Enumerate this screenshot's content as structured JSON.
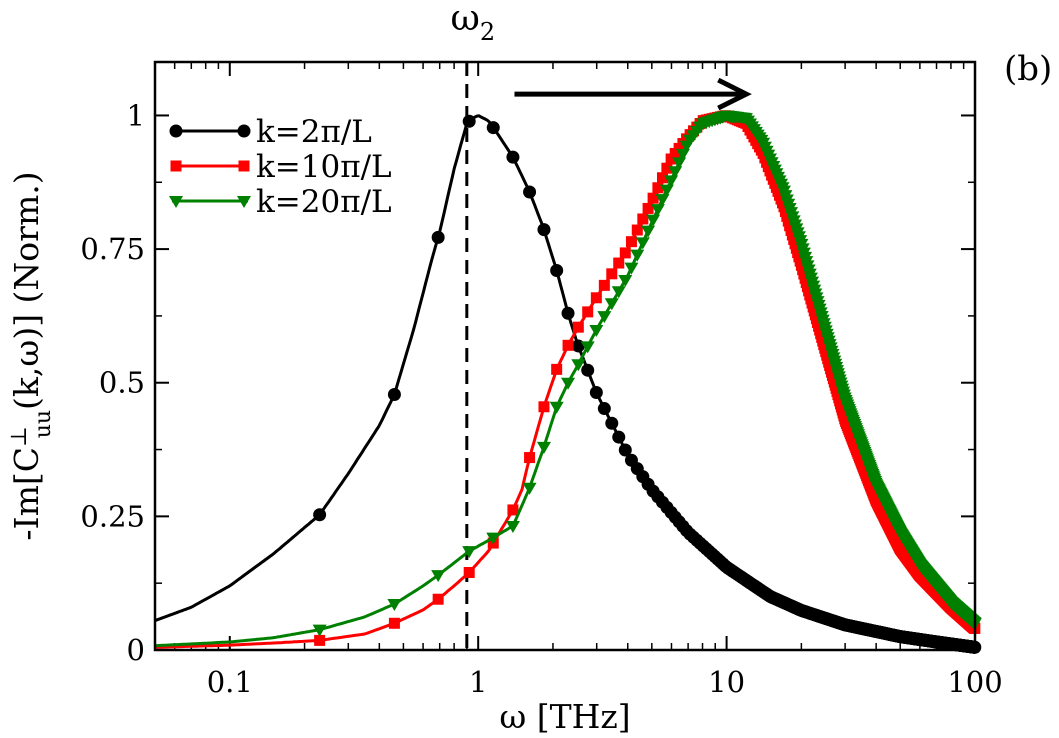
{
  "chart_data": {
    "type": "line",
    "xscale": "log",
    "xlim": [
      0.05,
      100
    ],
    "ylim": [
      0,
      1.1
    ],
    "xticks": [
      {
        "value": 0.1,
        "label": "0.1"
      },
      {
        "value": 1,
        "label": "1"
      },
      {
        "value": 10,
        "label": "10"
      },
      {
        "value": 100,
        "label": "100"
      }
    ],
    "yticks": [
      {
        "value": 0,
        "label": "0"
      },
      {
        "value": 0.25,
        "label": "0.25"
      },
      {
        "value": 0.5,
        "label": "0.5"
      },
      {
        "value": 0.75,
        "label": "0.75"
      },
      {
        "value": 1,
        "label": "1"
      }
    ],
    "xlabel": "ω [THz]",
    "ylabel": {
      "prefix": "-Im[C",
      "sup": "⊥",
      "sub": "uu",
      "suffix": "(k,ω)] (Norm.)"
    },
    "panel_label": "(b)",
    "vline": {
      "x": 0.9,
      "label": "ω",
      "label_sub": "2",
      "style": "dashed"
    },
    "arrow": {
      "from_x": 1.4,
      "to_x": 12,
      "y": 1.04,
      "direction": "right"
    },
    "series": [
      {
        "name": "k=2π/L",
        "color": "#000000",
        "marker": "circle",
        "points": [
          [
            0.05,
            0.055
          ],
          [
            0.07,
            0.08
          ],
          [
            0.1,
            0.12
          ],
          [
            0.15,
            0.18
          ],
          [
            0.23,
            0.253
          ],
          [
            0.3,
            0.33
          ],
          [
            0.4,
            0.42
          ],
          [
            0.46,
            0.478
          ],
          [
            0.55,
            0.6
          ],
          [
            0.65,
            0.73
          ],
          [
            0.7,
            0.782
          ],
          [
            0.8,
            0.9
          ],
          [
            0.9,
            0.985
          ],
          [
            0.95,
            0.995
          ],
          [
            1.0,
            1.0
          ],
          [
            1.1,
            0.99
          ],
          [
            1.2,
            0.965
          ],
          [
            1.38,
            0.922
          ],
          [
            1.6,
            0.86
          ],
          [
            1.83,
            0.79
          ],
          [
            2.07,
            0.71
          ],
          [
            2.3,
            0.63
          ],
          [
            2.5,
            0.575
          ],
          [
            3,
            0.48
          ],
          [
            4,
            0.365
          ],
          [
            5,
            0.3
          ],
          [
            7,
            0.22
          ],
          [
            10,
            0.155
          ],
          [
            15,
            0.1
          ],
          [
            20,
            0.074
          ],
          [
            30,
            0.047
          ],
          [
            50,
            0.025
          ],
          [
            70,
            0.015
          ],
          [
            100,
            0.005
          ]
        ],
        "markers_x": [
          0.23,
          0.46,
          0.69,
          0.92,
          1.15,
          1.38,
          1.61,
          1.84,
          2.07,
          2.3,
          2.53,
          2.76,
          2.99,
          3.22,
          3.45,
          3.68,
          3.91,
          4.14,
          4.37,
          4.6,
          4.83,
          5.06,
          5.29,
          5.52,
          5.75,
          5.98,
          6.21,
          6.44,
          6.67,
          6.9,
          7.13,
          7.36,
          7.59,
          7.82,
          8.05,
          8.28,
          8.51,
          8.74,
          8.97,
          9.2,
          9.43,
          9.66,
          9.89,
          10.12,
          10.35,
          10.58,
          10.81,
          11.04,
          11.27,
          11.5,
          11.73,
          11.96,
          12.19,
          12.42,
          12.65,
          12.88,
          13.11,
          13.34,
          13.57,
          13.8,
          14.03,
          14.26,
          14.49,
          14.72,
          14.95,
          15.18,
          15.41,
          15.64,
          15.87,
          16.1,
          16.33,
          16.56,
          16.79,
          17.02,
          17.25,
          17.48,
          17.71,
          17.94,
          18.17,
          18.4,
          18.63,
          18.86,
          19.09,
          19.32,
          19.55,
          19.78,
          20.01,
          20.24,
          20.47,
          20.7,
          20.93,
          21.16,
          21.39,
          21.62,
          21.85,
          22.08,
          22.31,
          22.54,
          22.77,
          23
        ]
      },
      {
        "name": "k=10π/L",
        "color": "#ff0000",
        "marker": "square",
        "points": [
          [
            0.05,
            0.005
          ],
          [
            0.1,
            0.009
          ],
          [
            0.15,
            0.013
          ],
          [
            0.23,
            0.018
          ],
          [
            0.35,
            0.03
          ],
          [
            0.46,
            0.05
          ],
          [
            0.6,
            0.075
          ],
          [
            0.69,
            0.095
          ],
          [
            0.8,
            0.12
          ],
          [
            0.92,
            0.145
          ],
          [
            1.1,
            0.185
          ],
          [
            1.15,
            0.2
          ],
          [
            1.38,
            0.262
          ],
          [
            1.5,
            0.3
          ],
          [
            1.61,
            0.36
          ],
          [
            1.84,
            0.455
          ],
          [
            2.07,
            0.525
          ],
          [
            2.3,
            0.57
          ],
          [
            2.5,
            0.6
          ],
          [
            3,
            0.66
          ],
          [
            4,
            0.75
          ],
          [
            5,
            0.84
          ],
          [
            6,
            0.92
          ],
          [
            7,
            0.96
          ],
          [
            8,
            0.99
          ],
          [
            10,
            1.0
          ],
          [
            12,
            0.985
          ],
          [
            14,
            0.93
          ],
          [
            17,
            0.83
          ],
          [
            20,
            0.72
          ],
          [
            25,
            0.56
          ],
          [
            30,
            0.43
          ],
          [
            40,
            0.28
          ],
          [
            50,
            0.19
          ],
          [
            60,
            0.14
          ],
          [
            80,
            0.08
          ],
          [
            100,
            0.04
          ]
        ]
      },
      {
        "name": "k=20π/L",
        "color": "#008000",
        "marker": "triangle-down",
        "points": [
          [
            0.05,
            0.008
          ],
          [
            0.1,
            0.015
          ],
          [
            0.15,
            0.023
          ],
          [
            0.23,
            0.038
          ],
          [
            0.35,
            0.062
          ],
          [
            0.46,
            0.086
          ],
          [
            0.6,
            0.12
          ],
          [
            0.69,
            0.14
          ],
          [
            0.8,
            0.163
          ],
          [
            0.92,
            0.185
          ],
          [
            1.1,
            0.205
          ],
          [
            1.38,
            0.232
          ],
          [
            1.6,
            0.3
          ],
          [
            1.84,
            0.38
          ],
          [
            2.07,
            0.455
          ],
          [
            2.3,
            0.5
          ],
          [
            2.5,
            0.53
          ],
          [
            3,
            0.6
          ],
          [
            4,
            0.7
          ],
          [
            5,
            0.8
          ],
          [
            6,
            0.88
          ],
          [
            7,
            0.95
          ],
          [
            8,
            0.985
          ],
          [
            10,
            1.0
          ],
          [
            12,
            0.995
          ],
          [
            14,
            0.95
          ],
          [
            17,
            0.86
          ],
          [
            20,
            0.76
          ],
          [
            25,
            0.6
          ],
          [
            30,
            0.47
          ],
          [
            40,
            0.31
          ],
          [
            50,
            0.22
          ],
          [
            60,
            0.16
          ],
          [
            80,
            0.09
          ],
          [
            100,
            0.05
          ]
        ]
      }
    ],
    "legend": {
      "position": "top-left"
    }
  }
}
